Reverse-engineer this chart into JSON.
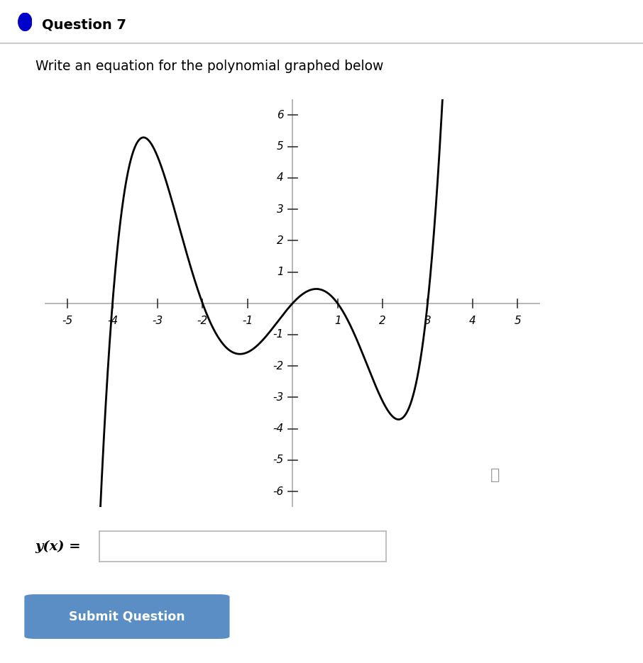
{
  "title": "Write an equation for the polynomial graphed below",
  "question_label": "Question 7",
  "xlim": [
    -5.5,
    5.5
  ],
  "ylim": [
    -6.5,
    6.5
  ],
  "xtick_vals": [
    -5,
    -4,
    -3,
    -2,
    -1,
    1,
    2,
    3,
    4,
    5
  ],
  "ytick_vals": [
    -6,
    -5,
    -4,
    -3,
    -2,
    -1,
    1,
    2,
    3,
    4,
    5,
    6
  ],
  "poly_roots": [
    -4,
    -2,
    0,
    1,
    3
  ],
  "poly_scale": 0.065,
  "background_color": "#ffffff",
  "curve_color": "#000000",
  "axis_line_color": "#aaaaaa",
  "tick_label_color": "#000000",
  "input_label": "y(x) =",
  "button_text": "Submit Question",
  "button_color": "#5b8ec4",
  "question_dot_color": "#0000cc",
  "divider_color": "#cccccc",
  "input_border_color": "#bbbbbb",
  "search_color": "#999999"
}
